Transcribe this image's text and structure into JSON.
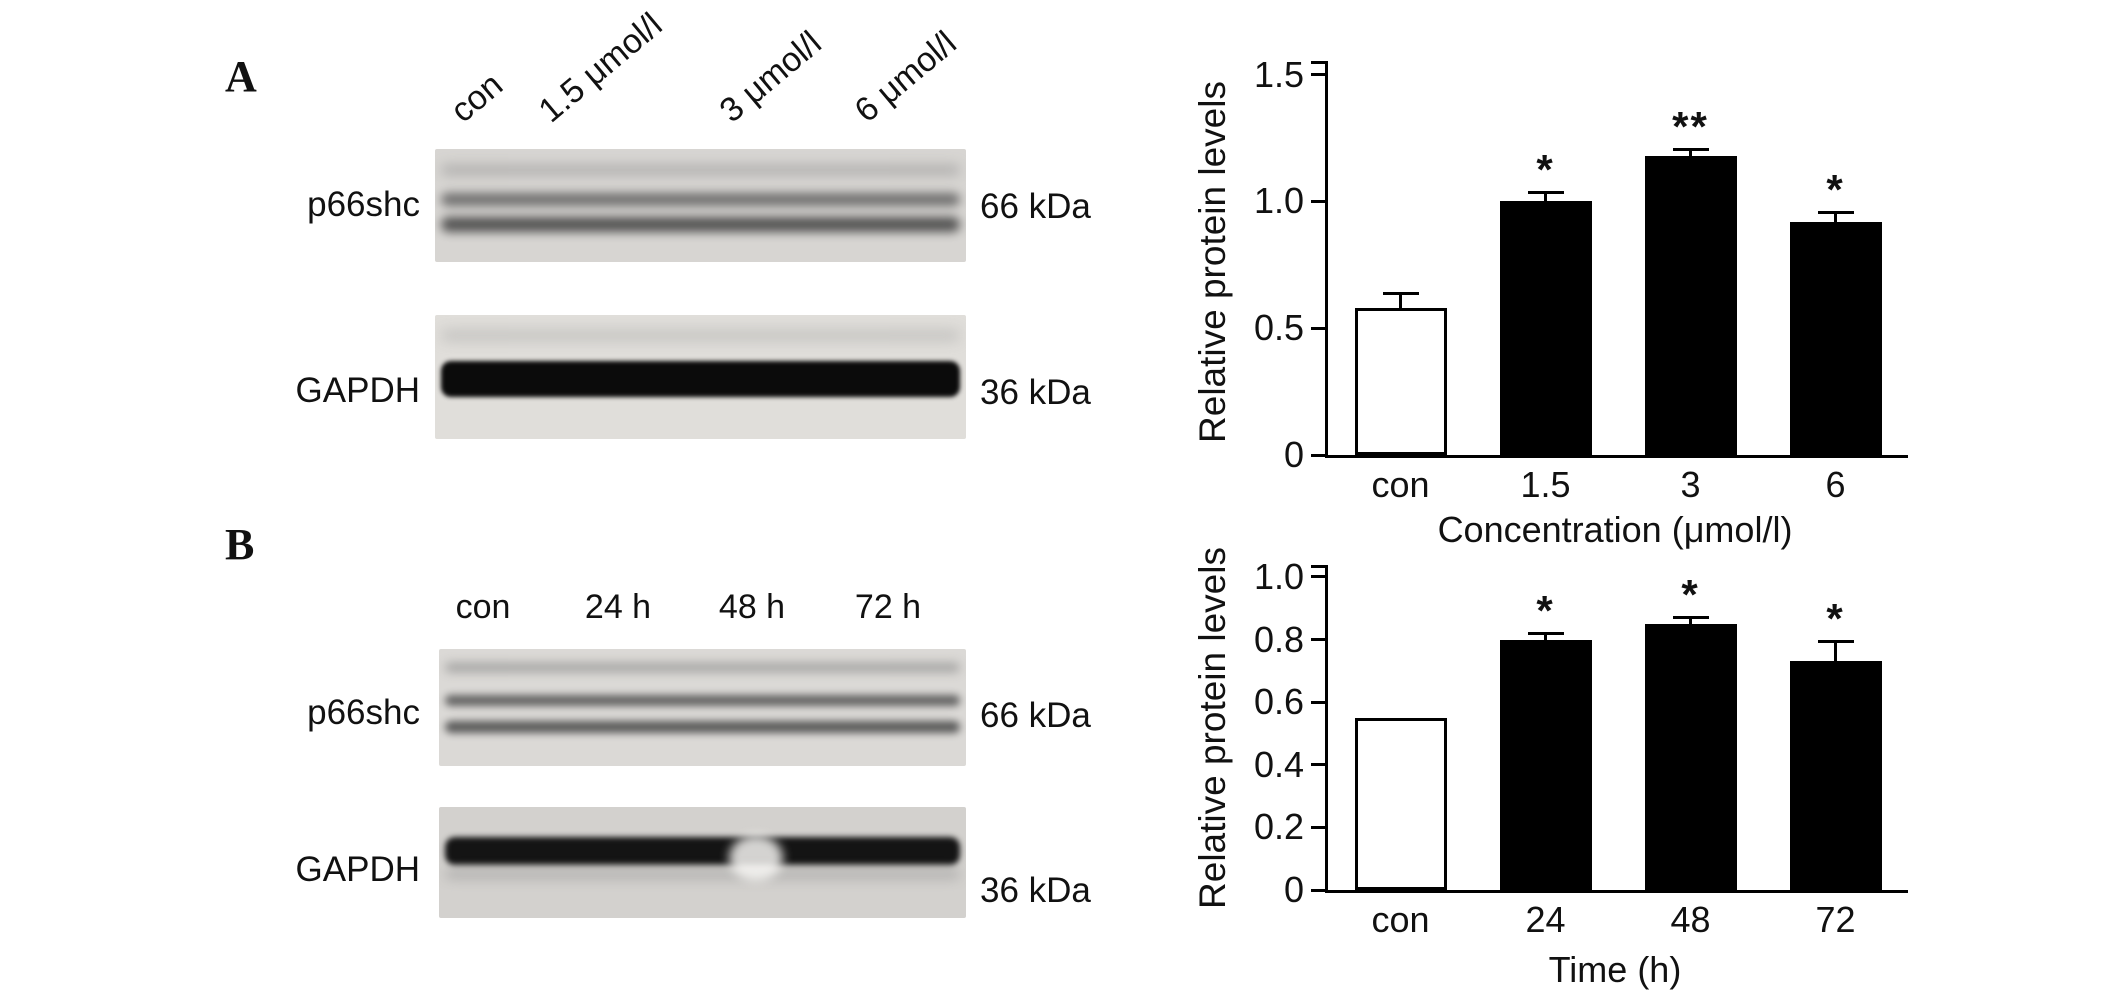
{
  "figure": {
    "panels": [
      {
        "label": "A",
        "lanes": [
          "con",
          "1.5 μmol/l",
          "3 μmol/l",
          "6 μmol/l"
        ],
        "blots": [
          {
            "protein": "p66shc",
            "size": "66 kDa"
          },
          {
            "protein": "GAPDH",
            "size": "36 kDa"
          }
        ]
      },
      {
        "label": "B",
        "lanes": [
          "con",
          "24 h",
          "48 h",
          "72 h"
        ],
        "blots": [
          {
            "protein": "p66shc",
            "size": "66 kDa"
          },
          {
            "protein": "GAPDH",
            "size": "36 kDa"
          }
        ]
      }
    ]
  },
  "chart_data": [
    {
      "type": "bar",
      "title": "",
      "categories": [
        "con",
        "1.5",
        "3",
        "6"
      ],
      "values": [
        0.58,
        1.0,
        1.18,
        0.92
      ],
      "errors": [
        0.05,
        0.03,
        0.02,
        0.03
      ],
      "significance": [
        "",
        "*",
        "**",
        "*"
      ],
      "bar_fills": [
        "#ffffff",
        "#000000",
        "#000000",
        "#000000"
      ],
      "xlabel": "Concentration (μmol/l)",
      "ylabel": "Relative protein levels",
      "ylim": [
        0,
        1.55
      ],
      "yticks": [
        0,
        0.5,
        1.0,
        1.5
      ],
      "ytick_labels": [
        "0",
        "0.5",
        "1.0",
        "1.5"
      ],
      "grid": false,
      "legend": "none"
    },
    {
      "type": "bar",
      "title": "",
      "categories": [
        "con",
        "24",
        "48",
        "72"
      ],
      "values": [
        0.55,
        0.8,
        0.85,
        0.73
      ],
      "errors": [
        0,
        0.015,
        0.015,
        0.06
      ],
      "significance": [
        "",
        "*",
        "*",
        "*"
      ],
      "bar_fills": [
        "#ffffff",
        "#000000",
        "#000000",
        "#000000"
      ],
      "xlabel": "Time (h)",
      "ylabel": "Relative protein levels",
      "ylim": [
        0,
        1.035
      ],
      "yticks": [
        0,
        0.2,
        0.4,
        0.6,
        0.8,
        1.0
      ],
      "ytick_labels": [
        "0",
        "0.2",
        "0.4",
        "0.6",
        "0.8",
        "1.0"
      ],
      "grid": false,
      "legend": "none"
    }
  ]
}
